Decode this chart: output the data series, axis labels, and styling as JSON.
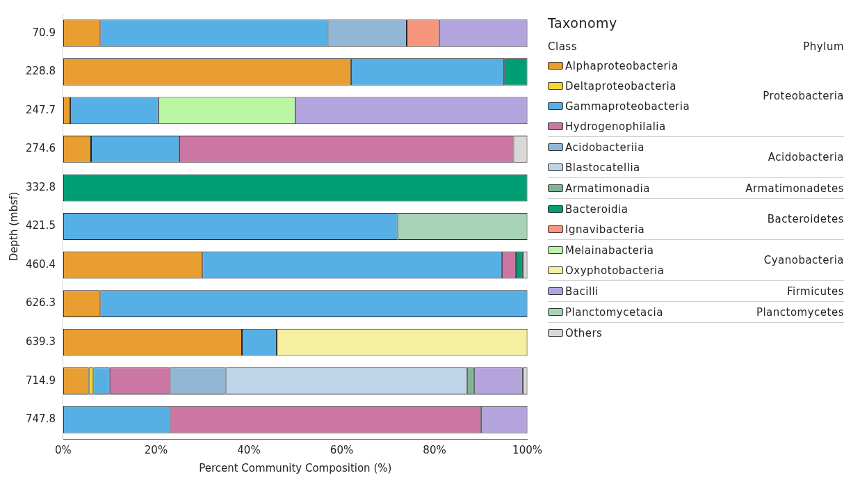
{
  "chart_data": {
    "type": "bar",
    "orientation": "horizontal",
    "stacked": true,
    "xlabel": "Percent Community Composition (%)",
    "ylabel": "Depth (mbsf)",
    "legend_title": "Taxonomy",
    "categories": [
      "70.9",
      "228.8",
      "247.7",
      "274.6",
      "332.8",
      "421.5",
      "460.4",
      "626.3",
      "639.3",
      "714.9",
      "747.8"
    ],
    "xlim": [
      0,
      100
    ],
    "xticks": [
      {
        "value": 0,
        "label": "0%"
      },
      {
        "value": 20,
        "label": "20%"
      },
      {
        "value": 40,
        "label": "40%"
      },
      {
        "value": 60,
        "label": "60%"
      },
      {
        "value": 80,
        "label": "80%"
      },
      {
        "value": 100,
        "label": "100%"
      }
    ],
    "grid": false,
    "legend": "right",
    "annotations": [
      "Class",
      "Phylum",
      "Proteobacteria",
      "Acidobacteria",
      "Armatimonadetes",
      "Bacteroidetes",
      "Cyanobacteria",
      "Firmicutes",
      "Planctomycetes"
    ],
    "series": [
      {
        "name": "Alphaproteobacteria",
        "color": "#e89e31",
        "values": [
          8,
          62,
          1.5,
          6,
          null,
          null,
          30,
          8,
          38.5,
          5.5,
          null
        ]
      },
      {
        "name": "Deltaproteobacteria",
        "color": "#f0d830",
        "values": [
          null,
          null,
          null,
          null,
          null,
          null,
          null,
          null,
          null,
          1,
          null
        ]
      },
      {
        "name": "Gammaproteobacteria",
        "color": "#56b0e6",
        "values": [
          49,
          33,
          19,
          19,
          null,
          72,
          64.5,
          92,
          7.5,
          3.5,
          23
        ]
      },
      {
        "name": "Hydrogenophilalia",
        "color": "#cc76a4",
        "values": [
          null,
          null,
          null,
          72,
          null,
          null,
          3,
          null,
          null,
          13,
          67
        ]
      },
      {
        "name": "Acidobacteriia",
        "color": "#92b6d5",
        "values": [
          17,
          null,
          null,
          null,
          null,
          null,
          null,
          null,
          null,
          12,
          null
        ]
      },
      {
        "name": "Blastocatellia",
        "color": "#bed4e8",
        "values": [
          null,
          null,
          null,
          null,
          null,
          null,
          null,
          null,
          null,
          52,
          null
        ]
      },
      {
        "name": "Armatimonadia",
        "color": "#7fb595",
        "values": [
          null,
          null,
          null,
          null,
          null,
          null,
          null,
          null,
          null,
          1.5,
          null
        ]
      },
      {
        "name": "Bacteroidia",
        "color": "#009e73",
        "values": [
          null,
          5,
          null,
          null,
          100,
          null,
          1.5,
          null,
          null,
          null,
          null
        ]
      },
      {
        "name": "Ignavibacteria",
        "color": "#f7967c",
        "values": [
          7,
          null,
          null,
          null,
          null,
          null,
          null,
          null,
          null,
          null,
          null
        ]
      },
      {
        "name": "Melainabacteria",
        "color": "#b9f5a3",
        "values": [
          null,
          null,
          29.5,
          null,
          null,
          null,
          null,
          null,
          null,
          null,
          null
        ]
      },
      {
        "name": "Oxyphotobacteria",
        "color": "#f5f0a0",
        "values": [
          null,
          null,
          null,
          null,
          null,
          null,
          null,
          null,
          54,
          null,
          null
        ]
      },
      {
        "name": "Bacilli",
        "color": "#b3a4de",
        "values": [
          19,
          null,
          50,
          null,
          null,
          null,
          null,
          null,
          null,
          10.5,
          10
        ]
      },
      {
        "name": "Planctomycetacia",
        "color": "#a7d2b5",
        "values": [
          null,
          null,
          null,
          null,
          null,
          28,
          null,
          null,
          null,
          null,
          null
        ]
      },
      {
        "name": "Others",
        "color": "#d8d8d8",
        "values": [
          null,
          null,
          null,
          3,
          null,
          null,
          1,
          null,
          null,
          1,
          null
        ]
      }
    ]
  }
}
